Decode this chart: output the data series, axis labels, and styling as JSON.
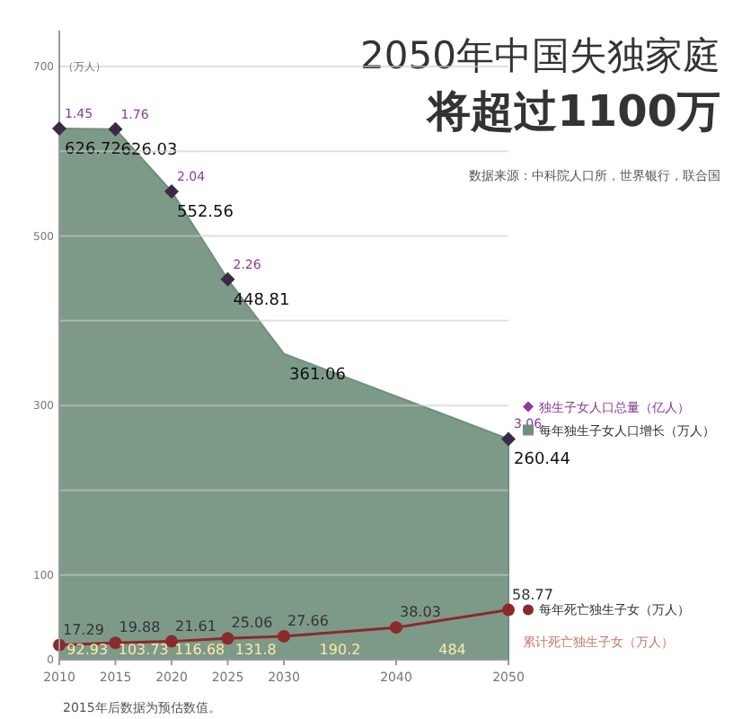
{
  "chart_data": {
    "type": "area",
    "title": "2050年中国失独家庭",
    "subtitle": "将超过1100万",
    "ylabel": "（万人）",
    "xlim": [
      2010,
      2050
    ],
    "xticks": [
      2010,
      2015,
      2020,
      2025,
      2030,
      2040,
      2050
    ],
    "ylim": [
      0,
      700
    ],
    "yticks": [
      0,
      100,
      {
        "value": 200,
        "label": null
      },
      300,
      {
        "value": 400,
        "label": null
      },
      500,
      {
        "value": 600,
        "label": null
      },
      700
    ],
    "grid": "y",
    "data_labels": true,
    "legend": "right",
    "series": [
      {
        "name": "每年独生子女人口增长（万人）",
        "color": "#6f8f7c",
        "x": [
          2010,
          2015,
          2020,
          2025,
          2030,
          2050
        ],
        "values": [
          626.72,
          626.03,
          552.56,
          448.81,
          361.06,
          260.44
        ]
      },
      {
        "name": "每年死亡独生子女（万人）",
        "type": "line",
        "color": "#8b2a2a",
        "marker": "circle",
        "x": [
          2010,
          2015,
          2020,
          2025,
          2030,
          2040,
          2050
        ],
        "values": [
          17.29,
          19.88,
          21.61,
          25.06,
          27.66,
          38.03,
          58.77
        ]
      }
    ],
    "annotations": [
      {
        "text": "1.45",
        "x": 2010,
        "y": 626.72
      },
      {
        "text": "1.76",
        "x": 2015,
        "y": 626.03
      },
      {
        "text": "2.04",
        "x": 2020,
        "y": 552.56
      },
      {
        "text": "2.26",
        "x": 2025,
        "y": 448.81
      },
      {
        "text": "3.06",
        "x": 2050,
        "y": 260.44
      },
      "独生子女人口总量（亿人）",
      "累计死亡独生子女（万人）",
      {
        "text": "92.93",
        "x": 2012.5,
        "y": 8
      },
      {
        "text": "103.73",
        "x": 2017.5,
        "y": 8
      },
      {
        "text": "116.68",
        "x": 2022.5,
        "y": 8
      },
      {
        "text": "131.8",
        "x": 2027.5,
        "y": 8
      },
      {
        "text": "190.2",
        "x": 2035,
        "y": 8
      },
      {
        "text": "484",
        "x": 2045,
        "y": 8
      },
      "数据来源：中科院人口所，世界银行，联合国",
      "2015年后数据为预估数值。"
    ]
  }
}
